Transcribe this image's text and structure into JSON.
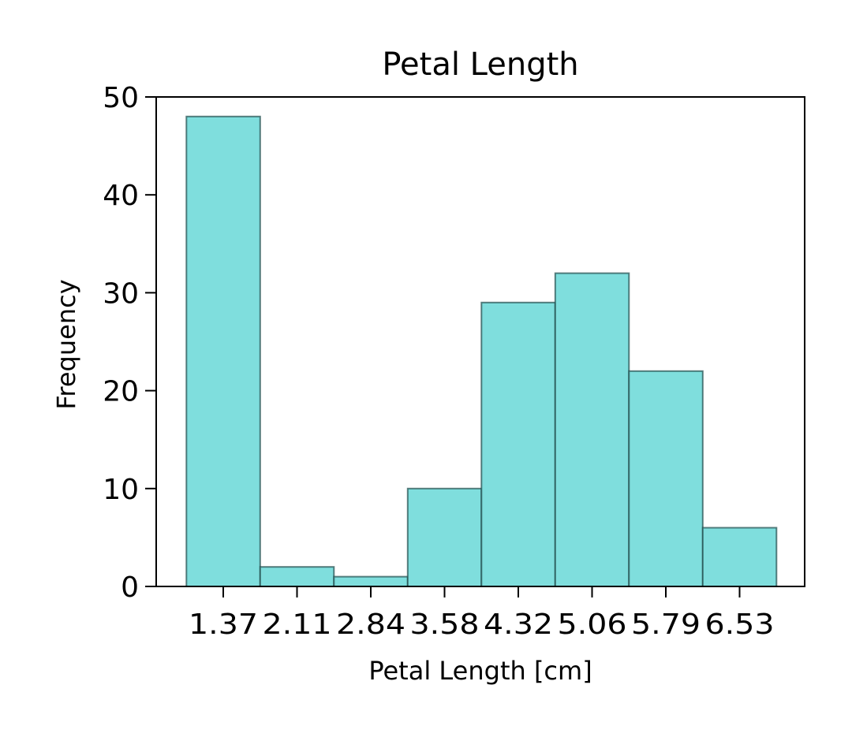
{
  "chart_data": {
    "type": "bar",
    "title": "Petal Length",
    "xlabel": "Petal Length [cm]",
    "ylabel": "Frequency",
    "categories": [
      "1.37",
      "2.11",
      "2.84",
      "3.58",
      "4.32",
      "5.06",
      "5.79",
      "6.53"
    ],
    "values": [
      48,
      2,
      1,
      10,
      29,
      32,
      22,
      6
    ],
    "ylim": [
      0,
      50
    ],
    "yticks": [
      0,
      10,
      20,
      30,
      40,
      50
    ],
    "grid": false,
    "legend": "none",
    "colors": {
      "bar_fill": "#7fdedd",
      "bar_edge": "#1f4a4a"
    }
  }
}
